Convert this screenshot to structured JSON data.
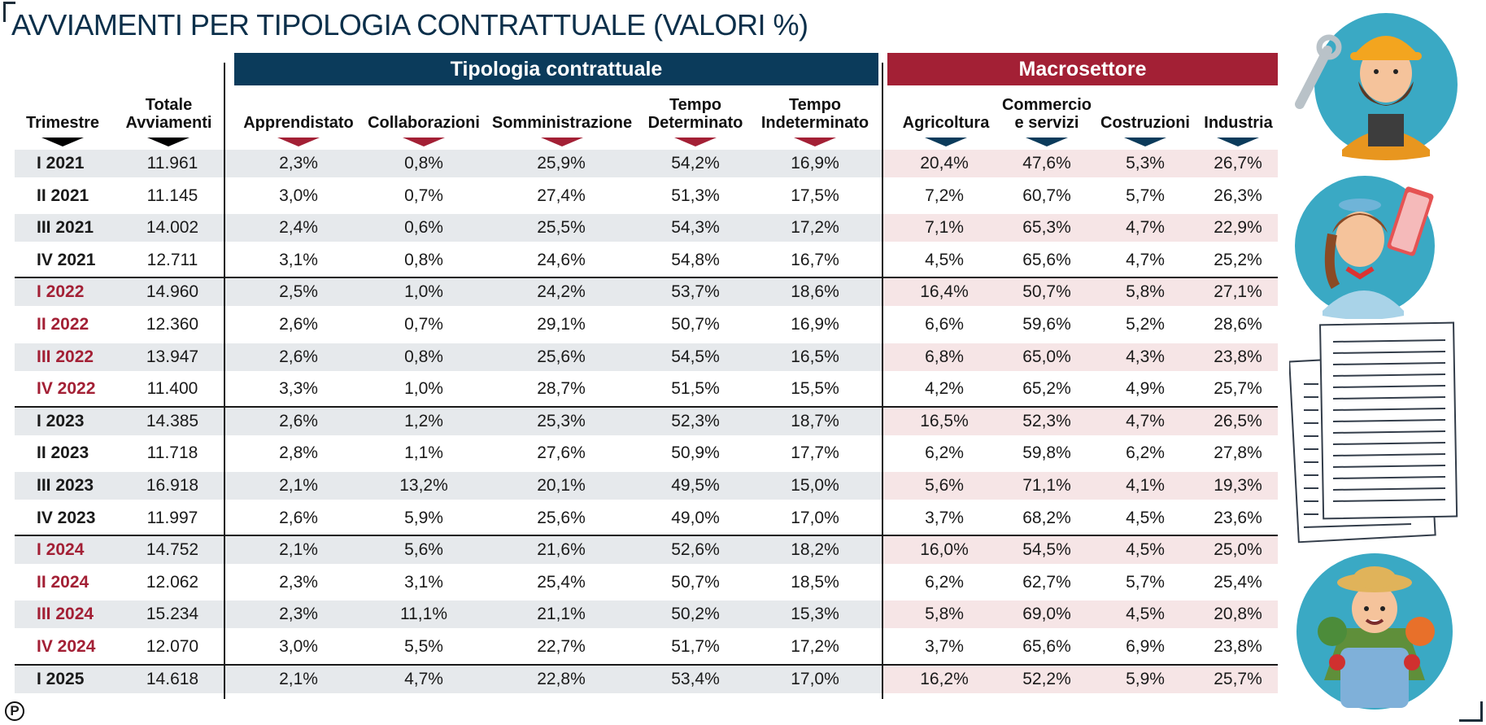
{
  "title": "AVVIAMENTI PER TIPOLOGIA CONTRATTUALE (VALORI %)",
  "group_headers": {
    "tipologia": "Tipologia contrattuale",
    "macrosettore": "Macrosettore"
  },
  "columns": {
    "trimestre": "Trimestre",
    "totale_1": "Totale",
    "totale_2": "Avviamenti",
    "apprendistato": "Apprendistato",
    "collaborazioni": "Collaborazioni",
    "somministrazione": "Somministrazione",
    "td_1": "Tempo",
    "td_2": "Determinato",
    "ti_1": "Tempo",
    "ti_2": "Indeterminato",
    "agricoltura": "Agricoltura",
    "commercio_1": "Commercio",
    "commercio_2": "e servizi",
    "costruzioni": "Costruzioni",
    "industria": "Industria"
  },
  "colors": {
    "blue": "#0b3b5b",
    "red": "#a32035",
    "row_grey": "#e6e9ec",
    "row_pink": "#f6e5e6"
  },
  "logo": "P",
  "chart_data": {
    "type": "table",
    "title": "AVVIAMENTI PER TIPOLOGIA CONTRATTUALE (VALORI %)",
    "headers": [
      "Trimestre",
      "Totale Avviamenti",
      "Apprendistato",
      "Collaborazioni",
      "Somministrazione",
      "Tempo Determinato",
      "Tempo Indeterminato",
      "Agricoltura",
      "Commercio e servizi",
      "Costruzioni",
      "Industria"
    ],
    "rows": [
      [
        "I 2021",
        "11.961",
        "2,3%",
        "0,8%",
        "25,9%",
        "54,2%",
        "16,9%",
        "20,4%",
        "47,6%",
        "5,3%",
        "26,7%"
      ],
      [
        "II 2021",
        "11.145",
        "3,0%",
        "0,7%",
        "27,4%",
        "51,3%",
        "17,5%",
        "7,2%",
        "60,7%",
        "5,7%",
        "26,3%"
      ],
      [
        "III 2021",
        "14.002",
        "2,4%",
        "0,6%",
        "25,5%",
        "54,3%",
        "17,2%",
        "7,1%",
        "65,3%",
        "4,7%",
        "22,9%"
      ],
      [
        "IV 2021",
        "12.711",
        "3,1%",
        "0,8%",
        "24,6%",
        "54,8%",
        "16,7%",
        "4,5%",
        "65,6%",
        "4,7%",
        "25,2%"
      ],
      [
        "I 2022",
        "14.960",
        "2,5%",
        "1,0%",
        "24,2%",
        "53,7%",
        "18,6%",
        "16,4%",
        "50,7%",
        "5,8%",
        "27,1%"
      ],
      [
        "II 2022",
        "12.360",
        "2,6%",
        "0,7%",
        "29,1%",
        "50,7%",
        "16,9%",
        "6,6%",
        "59,6%",
        "5,2%",
        "28,6%"
      ],
      [
        "III 2022",
        "13.947",
        "2,6%",
        "0,8%",
        "25,6%",
        "54,5%",
        "16,5%",
        "6,8%",
        "65,0%",
        "4,3%",
        "23,8%"
      ],
      [
        "IV 2022",
        "11.400",
        "3,3%",
        "1,0%",
        "28,7%",
        "51,5%",
        "15,5%",
        "4,2%",
        "65,2%",
        "4,9%",
        "25,7%"
      ],
      [
        "I 2023",
        "14.385",
        "2,6%",
        "1,2%",
        "25,3%",
        "52,3%",
        "18,7%",
        "16,5%",
        "52,3%",
        "4,7%",
        "26,5%"
      ],
      [
        "II 2023",
        "11.718",
        "2,8%",
        "1,1%",
        "27,6%",
        "50,9%",
        "17,7%",
        "6,2%",
        "59,8%",
        "6,2%",
        "27,8%"
      ],
      [
        "III 2023",
        "16.918",
        "2,1%",
        "13,2%",
        "20,1%",
        "49,5%",
        "15,0%",
        "5,6%",
        "71,1%",
        "4,1%",
        "19,3%"
      ],
      [
        "IV 2023",
        "11.997",
        "2,6%",
        "5,9%",
        "25,6%",
        "49,0%",
        "17,0%",
        "3,7%",
        "68,2%",
        "4,5%",
        "23,6%"
      ],
      [
        "I 2024",
        "14.752",
        "2,1%",
        "5,6%",
        "21,6%",
        "52,6%",
        "18,2%",
        "16,0%",
        "54,5%",
        "4,5%",
        "25,0%"
      ],
      [
        "II 2024",
        "12.062",
        "2,3%",
        "3,1%",
        "25,4%",
        "50,7%",
        "18,5%",
        "6,2%",
        "62,7%",
        "5,7%",
        "25,4%"
      ],
      [
        "III 2024",
        "15.234",
        "2,3%",
        "11,1%",
        "21,1%",
        "50,2%",
        "15,3%",
        "5,8%",
        "69,0%",
        "4,5%",
        "20,8%"
      ],
      [
        "IV 2024",
        "12.070",
        "3,0%",
        "5,5%",
        "22,7%",
        "51,7%",
        "17,2%",
        "3,7%",
        "65,6%",
        "6,9%",
        "23,8%"
      ],
      [
        "I 2025",
        "14.618",
        "2,1%",
        "4,7%",
        "22,8%",
        "53,4%",
        "17,0%",
        "16,2%",
        "52,2%",
        "5,9%",
        "25,7%"
      ]
    ],
    "highlighted_quarter_rows": [
      4,
      5,
      6,
      7,
      12,
      13,
      14,
      15
    ]
  }
}
